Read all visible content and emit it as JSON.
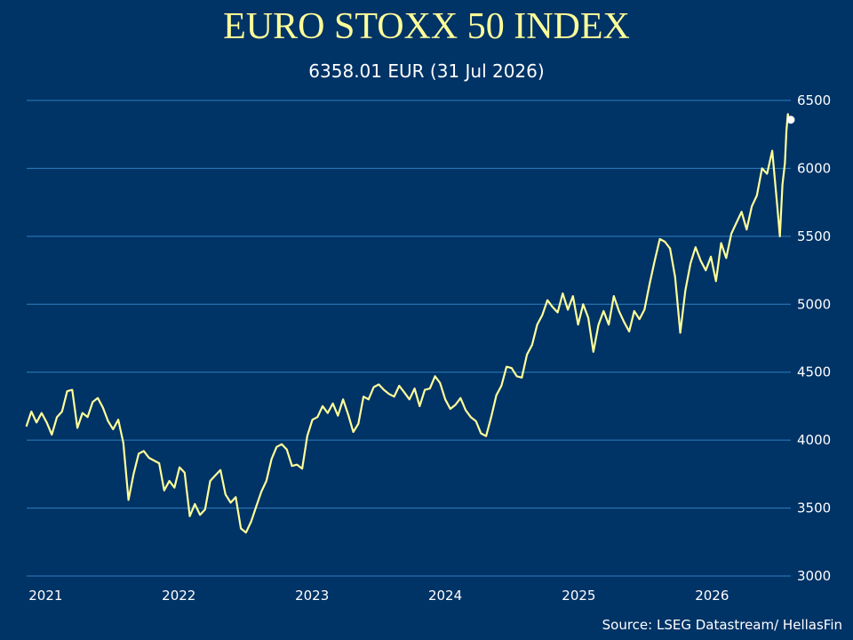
{
  "title": "EURO STOXX 50 INDEX",
  "subtitle": "6358.01 EUR (31 Jul 2026)",
  "source": "Source: LSEG Datastream/ HellasFin",
  "colors": {
    "background": "#003366",
    "line": "#ffff99",
    "grid": "#2e7fbf",
    "marker": "#ffffff",
    "text": "#ffffff",
    "title": "#ffff99"
  },
  "chart_data": {
    "type": "line",
    "title": "EURO STOXX 50 INDEX",
    "subtitle": "6358.01 EUR (31 Jul 2026)",
    "xlabel": "",
    "ylabel": "",
    "ylim": [
      3000,
      6500
    ],
    "y_ticks": [
      3000,
      3500,
      4000,
      4500,
      5000,
      5500,
      6000,
      6500
    ],
    "x_ticks": [
      {
        "label": "2021",
        "date": "2021-01-01"
      },
      {
        "label": "2022",
        "date": "2022-01-01"
      },
      {
        "label": "2023",
        "date": "2023-01-01"
      },
      {
        "label": "2024",
        "date": "2024-01-01"
      },
      {
        "label": "2025",
        "date": "2025-01-01"
      },
      {
        "label": "2026",
        "date": "2026-01-01"
      }
    ],
    "y_axis_position": "right",
    "grid": "horizontal",
    "last_point": {
      "date": "2026-07-31",
      "value": 6358.01
    },
    "series": [
      {
        "values": [
          [
            "2020-11-09",
            4100
          ],
          [
            "2020-11-23",
            4210
          ],
          [
            "2020-12-07",
            4130
          ],
          [
            "2020-12-21",
            4200
          ],
          [
            "2021-01-04",
            4130
          ],
          [
            "2021-01-18",
            4040
          ],
          [
            "2021-02-01",
            4170
          ],
          [
            "2021-02-15",
            4210
          ],
          [
            "2021-03-01",
            4360
          ],
          [
            "2021-03-15",
            4370
          ],
          [
            "2021-03-29",
            4090
          ],
          [
            "2021-04-12",
            4200
          ],
          [
            "2021-04-26",
            4170
          ],
          [
            "2021-05-10",
            4280
          ],
          [
            "2021-05-24",
            4310
          ],
          [
            "2021-06-07",
            4240
          ],
          [
            "2021-06-21",
            4140
          ],
          [
            "2021-07-05",
            4080
          ],
          [
            "2021-07-19",
            4150
          ],
          [
            "2021-08-02",
            3980
          ],
          [
            "2021-08-16",
            3560
          ],
          [
            "2021-08-30",
            3750
          ],
          [
            "2021-09-13",
            3900
          ],
          [
            "2021-09-27",
            3920
          ],
          [
            "2021-10-11",
            3870
          ],
          [
            "2021-10-25",
            3850
          ],
          [
            "2021-11-08",
            3830
          ],
          [
            "2021-11-22",
            3630
          ],
          [
            "2021-12-06",
            3700
          ],
          [
            "2021-12-20",
            3650
          ],
          [
            "2022-01-03",
            3800
          ],
          [
            "2022-01-17",
            3760
          ],
          [
            "2022-01-31",
            3440
          ],
          [
            "2022-02-14",
            3530
          ],
          [
            "2022-02-28",
            3450
          ],
          [
            "2022-03-14",
            3490
          ],
          [
            "2022-03-28",
            3700
          ],
          [
            "2022-04-11",
            3740
          ],
          [
            "2022-04-25",
            3780
          ],
          [
            "2022-05-09",
            3600
          ],
          [
            "2022-05-23",
            3540
          ],
          [
            "2022-06-06",
            3580
          ],
          [
            "2022-06-20",
            3350
          ],
          [
            "2022-07-04",
            3320
          ],
          [
            "2022-07-18",
            3400
          ],
          [
            "2022-08-01",
            3510
          ],
          [
            "2022-08-15",
            3620
          ],
          [
            "2022-08-29",
            3700
          ],
          [
            "2022-09-12",
            3860
          ],
          [
            "2022-09-26",
            3950
          ],
          [
            "2022-10-10",
            3970
          ],
          [
            "2022-10-24",
            3930
          ],
          [
            "2022-11-07",
            3810
          ],
          [
            "2022-11-21",
            3820
          ],
          [
            "2022-12-05",
            3790
          ],
          [
            "2022-12-19",
            4030
          ],
          [
            "2023-01-02",
            4150
          ],
          [
            "2023-01-16",
            4170
          ],
          [
            "2023-01-30",
            4250
          ],
          [
            "2023-02-13",
            4200
          ],
          [
            "2023-02-27",
            4270
          ],
          [
            "2023-03-13",
            4180
          ],
          [
            "2023-03-27",
            4300
          ],
          [
            "2023-04-10",
            4190
          ],
          [
            "2023-04-24",
            4060
          ],
          [
            "2023-05-08",
            4120
          ],
          [
            "2023-05-22",
            4320
          ],
          [
            "2023-06-05",
            4300
          ],
          [
            "2023-06-19",
            4390
          ],
          [
            "2023-07-03",
            4410
          ],
          [
            "2023-07-17",
            4370
          ],
          [
            "2023-07-31",
            4340
          ],
          [
            "2023-08-14",
            4320
          ],
          [
            "2023-08-28",
            4400
          ],
          [
            "2023-09-11",
            4350
          ],
          [
            "2023-09-25",
            4300
          ],
          [
            "2023-10-09",
            4380
          ],
          [
            "2023-10-23",
            4250
          ],
          [
            "2023-11-06",
            4370
          ],
          [
            "2023-11-20",
            4380
          ],
          [
            "2023-12-04",
            4470
          ],
          [
            "2023-12-18",
            4420
          ],
          [
            "2024-01-01",
            4300
          ],
          [
            "2024-01-15",
            4230
          ],
          [
            "2024-01-29",
            4260
          ],
          [
            "2024-02-12",
            4310
          ],
          [
            "2024-02-26",
            4220
          ],
          [
            "2024-03-11",
            4170
          ],
          [
            "2024-03-25",
            4140
          ],
          [
            "2024-04-08",
            4050
          ],
          [
            "2024-04-22",
            4030
          ],
          [
            "2024-05-06",
            4170
          ],
          [
            "2024-05-20",
            4330
          ],
          [
            "2024-06-03",
            4400
          ],
          [
            "2024-06-17",
            4540
          ],
          [
            "2024-07-01",
            4530
          ],
          [
            "2024-07-15",
            4470
          ],
          [
            "2024-07-29",
            4460
          ],
          [
            "2024-08-12",
            4630
          ],
          [
            "2024-08-26",
            4700
          ],
          [
            "2024-09-09",
            4850
          ],
          [
            "2024-09-23",
            4920
          ],
          [
            "2024-10-07",
            5030
          ],
          [
            "2024-10-21",
            4980
          ],
          [
            "2024-11-04",
            4940
          ],
          [
            "2024-11-18",
            5080
          ],
          [
            "2024-12-02",
            4960
          ],
          [
            "2024-12-16",
            5060
          ],
          [
            "2024-12-30",
            4850
          ],
          [
            "2025-01-13",
            5000
          ],
          [
            "2025-01-27",
            4900
          ],
          [
            "2025-02-10",
            4650
          ],
          [
            "2025-02-24",
            4850
          ],
          [
            "2025-03-10",
            4950
          ],
          [
            "2025-03-24",
            4850
          ],
          [
            "2025-04-07",
            5060
          ],
          [
            "2025-04-21",
            4950
          ],
          [
            "2025-05-05",
            4870
          ],
          [
            "2025-05-19",
            4800
          ],
          [
            "2025-06-02",
            4950
          ],
          [
            "2025-06-16",
            4890
          ],
          [
            "2025-06-30",
            4960
          ],
          [
            "2025-07-14",
            5150
          ],
          [
            "2025-07-28",
            5320
          ],
          [
            "2025-08-11",
            5480
          ],
          [
            "2025-08-25",
            5460
          ],
          [
            "2025-09-08",
            5410
          ],
          [
            "2025-09-22",
            5200
          ],
          [
            "2025-10-06",
            4790
          ],
          [
            "2025-10-20",
            5100
          ],
          [
            "2025-11-03",
            5300
          ],
          [
            "2025-11-17",
            5420
          ],
          [
            "2025-12-01",
            5320
          ],
          [
            "2025-12-15",
            5250
          ],
          [
            "2025-12-29",
            5350
          ],
          [
            "2026-01-12",
            5170
          ],
          [
            "2026-01-26",
            5450
          ],
          [
            "2026-02-09",
            5340
          ],
          [
            "2026-02-23",
            5520
          ],
          [
            "2026-03-09",
            5600
          ],
          [
            "2026-03-23",
            5680
          ],
          [
            "2026-04-06",
            5550
          ],
          [
            "2026-04-20",
            5720
          ],
          [
            "2026-05-04",
            5800
          ],
          [
            "2026-05-18",
            6000
          ],
          [
            "2026-06-01",
            5960
          ],
          [
            "2026-06-15",
            6130
          ],
          [
            "2026-06-29",
            5720
          ],
          [
            "2026-07-06",
            5500
          ],
          [
            "2026-07-13",
            5880
          ],
          [
            "2026-07-20",
            6040
          ],
          [
            "2026-07-24",
            6280
          ],
          [
            "2026-07-28",
            6400
          ],
          [
            "2026-07-31",
            6358.01
          ]
        ]
      }
    ]
  }
}
